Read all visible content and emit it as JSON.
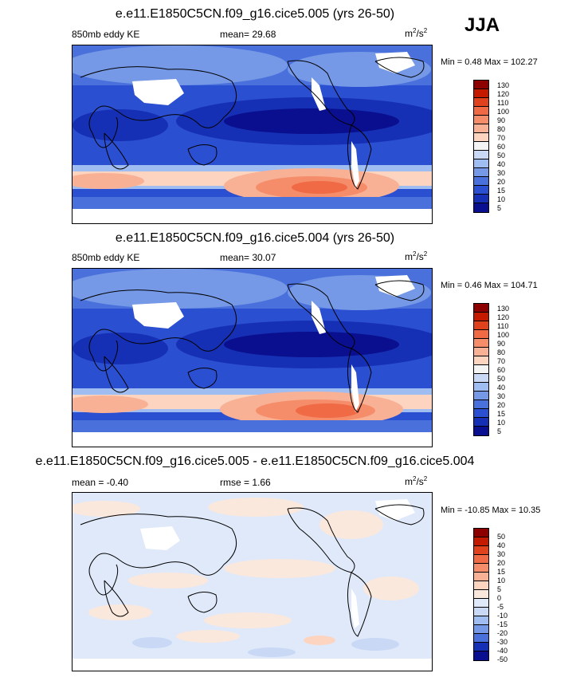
{
  "season": "JJA",
  "panels": [
    {
      "title": "e.e11.E1850C5CN.f09_g16.cice5.005 (yrs 26-50)",
      "left_label": "850mb eddy KE",
      "center_label": "mean=  29.68",
      "units_base": "m",
      "units_sup1": "2",
      "units_mid": "/s",
      "units_sup2": "2",
      "minmax": "Min =   0.48 Max = 102.27",
      "colorbar": {
        "labels": [
          "130",
          "120",
          "110",
          "100",
          "90",
          "80",
          "70",
          "60",
          "50",
          "40",
          "30",
          "20",
          "15",
          "10",
          "5"
        ],
        "colors": [
          "#8c0000",
          "#c41a00",
          "#e0421e",
          "#ef6a45",
          "#f58d6a",
          "#f9b195",
          "#fcd4bf",
          "#f4f4f4",
          "#c8d8f5",
          "#9fbdf0",
          "#7599e6",
          "#4a70dc",
          "#2b4fd1",
          "#1630b5",
          "#0a0f8f"
        ]
      }
    },
    {
      "title": "e.e11.E1850C5CN.f09_g16.cice5.004 (yrs 26-50)",
      "left_label": "850mb eddy KE",
      "center_label": "mean=  30.07",
      "units_base": "m",
      "units_sup1": "2",
      "units_mid": "/s",
      "units_sup2": "2",
      "minmax": "Min =   0.46 Max = 104.71",
      "colorbar": {
        "labels": [
          "130",
          "120",
          "110",
          "100",
          "90",
          "80",
          "70",
          "60",
          "50",
          "40",
          "30",
          "20",
          "15",
          "10",
          "5"
        ],
        "colors": [
          "#8c0000",
          "#c41a00",
          "#e0421e",
          "#ef6a45",
          "#f58d6a",
          "#f9b195",
          "#fcd4bf",
          "#f4f4f4",
          "#c8d8f5",
          "#9fbdf0",
          "#7599e6",
          "#4a70dc",
          "#2b4fd1",
          "#1630b5",
          "#0a0f8f"
        ]
      }
    },
    {
      "title": "e.e11.E1850C5CN.f09_g16.cice5.005 - e.e11.E1850C5CN.f09_g16.cice5.004",
      "left_label": "mean =  -0.40",
      "center_label": "rmse =   1.66",
      "units_base": "m",
      "units_sup1": "2",
      "units_mid": "/s",
      "units_sup2": "2",
      "minmax": "Min = -10.85 Max =  10.35",
      "colorbar": {
        "labels": [
          "50",
          "40",
          "30",
          "20",
          "15",
          "10",
          "5",
          "0",
          "-5",
          "-10",
          "-15",
          "-20",
          "-30",
          "-40",
          "-50"
        ],
        "colors": [
          "#8c0000",
          "#c41a00",
          "#e0421e",
          "#ef6a45",
          "#f58d6a",
          "#f9b195",
          "#fcd4bf",
          "#fbe8dc",
          "#dfe9fa",
          "#c8d8f5",
          "#9fbdf0",
          "#7599e6",
          "#4a70dc",
          "#1630b5",
          "#0a0f8f"
        ]
      }
    }
  ]
}
